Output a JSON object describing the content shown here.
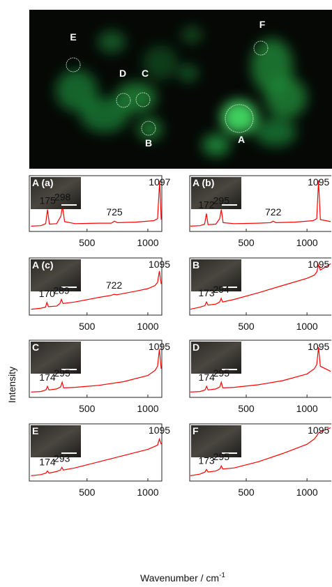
{
  "image": {
    "labels": [
      "E",
      "D",
      "C",
      "F",
      "B",
      "A"
    ]
  },
  "y_label": "Intensity",
  "x_label": "Wavenumber / cm",
  "x_label_sup": "-1",
  "chart_data": [
    {
      "type": "line",
      "title": "A (a)",
      "color": "#ff0000",
      "xlim": [
        25,
        1115
      ],
      "ylim": [
        0,
        100
      ],
      "xticks": [
        500,
        1000
      ],
      "x": [
        40,
        120,
        160,
        175,
        190,
        250,
        285,
        298,
        315,
        400,
        600,
        700,
        725,
        750,
        900,
        1050,
        1080,
        1097,
        1110
      ],
      "values": [
        5,
        6,
        10,
        38,
        9,
        10,
        25,
        45,
        14,
        10,
        11,
        11,
        15,
        12,
        13,
        16,
        20,
        95,
        18
      ],
      "peak_labels": [
        175,
        298,
        725,
        1097
      ]
    },
    {
      "type": "line",
      "title": "A (b)",
      "color": "#ff0000",
      "xlim": [
        35,
        1200
      ],
      "ylim": [
        0,
        100
      ],
      "xticks": [
        500,
        1000
      ],
      "x": [
        40,
        120,
        158,
        172,
        186,
        250,
        282,
        295,
        310,
        400,
        600,
        700,
        722,
        745,
        900,
        1050,
        1080,
        1095,
        1110,
        1195
      ],
      "values": [
        5,
        6,
        9,
        30,
        8,
        9,
        20,
        38,
        12,
        10,
        11,
        12,
        15,
        12,
        13,
        16,
        20,
        96,
        18,
        14
      ],
      "peak_labels": [
        172,
        295,
        722,
        1095
      ]
    },
    {
      "type": "line",
      "title": "A (c)",
      "color": "#ff0000",
      "xlim": [
        25,
        1115
      ],
      "ylim": [
        0,
        100
      ],
      "xticks": [
        500,
        1000
      ],
      "x": [
        40,
        120,
        158,
        170,
        182,
        250,
        277,
        289,
        302,
        400,
        600,
        700,
        722,
        745,
        900,
        1000,
        1060,
        1080,
        1095,
        1110
      ],
      "values": [
        6,
        8,
        10,
        19,
        11,
        12,
        17,
        25,
        17,
        20,
        29,
        33,
        35,
        34,
        41,
        46,
        52,
        58,
        80,
        55
      ],
      "peak_labels": [
        170,
        289,
        722,
        1095
      ]
    },
    {
      "type": "line",
      "title": "B",
      "color": "#ff0000",
      "xlim": [
        35,
        1200
      ],
      "ylim": [
        0,
        100
      ],
      "xticks": [
        500,
        1000
      ],
      "x": [
        40,
        120,
        160,
        173,
        186,
        250,
        282,
        294,
        306,
        400,
        600,
        800,
        1000,
        1060,
        1080,
        1095,
        1110,
        1195
      ],
      "values": [
        6,
        10,
        13,
        20,
        14,
        16,
        20,
        27,
        20,
        25,
        38,
        52,
        66,
        72,
        78,
        92,
        82,
        94
      ],
      "peak_labels": [
        173,
        294,
        1095
      ]
    },
    {
      "type": "line",
      "title": "C",
      "color": "#ff0000",
      "xlim": [
        25,
        1115
      ],
      "ylim": [
        0,
        100
      ],
      "xticks": [
        500,
        1000
      ],
      "x": [
        40,
        120,
        162,
        174,
        186,
        250,
        283,
        295,
        307,
        400,
        600,
        800,
        1000,
        1060,
        1080,
        1095,
        1110
      ],
      "values": [
        5,
        6,
        9,
        16,
        9,
        11,
        15,
        24,
        13,
        14,
        18,
        25,
        37,
        47,
        55,
        88,
        50
      ],
      "peak_labels": [
        174,
        295,
        1095
      ]
    },
    {
      "type": "line",
      "title": "D",
      "color": "#ff0000",
      "xlim": [
        35,
        1200
      ],
      "ylim": [
        0,
        100
      ],
      "xticks": [
        500,
        1000
      ],
      "x": [
        40,
        120,
        162,
        174,
        186,
        250,
        283,
        295,
        307,
        400,
        600,
        800,
        1000,
        1060,
        1080,
        1095,
        1110,
        1195
      ],
      "values": [
        5,
        6,
        9,
        16,
        9,
        11,
        15,
        24,
        13,
        14,
        19,
        27,
        40,
        50,
        58,
        92,
        55,
        45
      ],
      "peak_labels": [
        174,
        295,
        1095
      ]
    },
    {
      "type": "line",
      "title": "E",
      "color": "#ff0000",
      "xlim": [
        25,
        1115
      ],
      "ylim": [
        0,
        100
      ],
      "xticks": [
        500,
        1000
      ],
      "x": [
        40,
        120,
        162,
        174,
        186,
        250,
        281,
        293,
        305,
        400,
        600,
        800,
        1000,
        1060,
        1080,
        1095,
        1110
      ],
      "values": [
        5,
        7,
        10,
        14,
        10,
        13,
        16,
        21,
        16,
        20,
        32,
        44,
        56,
        62,
        64,
        76,
        66
      ],
      "peak_labels": [
        174,
        293,
        1095
      ]
    },
    {
      "type": "line",
      "title": "F",
      "color": "#ff0000",
      "xlim": [
        35,
        1200
      ],
      "ylim": [
        0,
        100
      ],
      "xticks": [
        500,
        1000
      ],
      "x": [
        40,
        120,
        160,
        173,
        186,
        250,
        283,
        295,
        307,
        400,
        600,
        800,
        1000,
        1060,
        1080,
        1095,
        1110,
        1195
      ],
      "values": [
        5,
        8,
        12,
        17,
        12,
        14,
        18,
        24,
        18,
        20,
        32,
        48,
        66,
        76,
        82,
        88,
        90,
        98
      ],
      "peak_labels": [
        173,
        295,
        1095
      ]
    }
  ]
}
